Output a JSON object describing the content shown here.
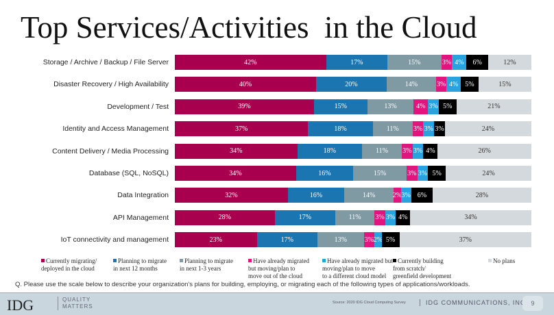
{
  "chart_data": {
    "type": "bar",
    "orientation": "horizontal",
    "stacked": true,
    "title": "Top Services/Activities  in the Cloud",
    "categories": [
      "Storage / Archive / Backup / File Server",
      "Disaster Recovery / High Availability",
      "Development / Test",
      "Identity and Access Management",
      "Content Delivery / Media Processing",
      "Database (SQL, NoSQL)",
      "Data Integration",
      "API Management",
      "IoT connectivity and management"
    ],
    "series": [
      {
        "name": "Currently migrating/ deployed in the cloud",
        "legend": "Currently migrating/\ndeployed in the cloud",
        "color": "#a8004f",
        "text": "#fff",
        "values": [
          42,
          40,
          39,
          37,
          34,
          34,
          32,
          28,
          23
        ]
      },
      {
        "name": "Planning to migrate in next 12 months",
        "legend": "Planning to migrate\nin next 12 months",
        "color": "#1a75b0",
        "text": "#fff",
        "values": [
          17,
          20,
          15,
          18,
          18,
          16,
          16,
          17,
          17
        ]
      },
      {
        "name": "Planning to migrate in next 1-3 years",
        "legend": "Planning to migrate\nin next 1-3 years",
        "color": "#7f9aa3",
        "text": "#fff",
        "values": [
          15,
          14,
          13,
          11,
          11,
          15,
          14,
          11,
          13
        ]
      },
      {
        "name": "Have already migrated but moving/plan to move out of the cloud",
        "legend": "Have already migrated\nbut moving/plan to\nmove out of the cloud",
        "color": "#e2147e",
        "text": "#fff",
        "values": [
          3,
          3,
          4,
          3,
          3,
          3,
          2,
          3,
          3
        ]
      },
      {
        "name": "Have already migrated but moving/plan to move to a different cloud model",
        "legend": "Have already migrated but\nmoving/plan to move\nto a different cloud model",
        "color": "#29a3e0",
        "text": "#fff",
        "values": [
          4,
          4,
          3,
          3,
          3,
          3,
          3,
          3,
          2
        ]
      },
      {
        "name": "Currently building from scratch/ greenfield development",
        "legend": "Currently building\nfrom scratch/\ngreenfield development",
        "color": "#000000",
        "text": "#fff",
        "values": [
          6,
          5,
          5,
          3,
          4,
          5,
          6,
          4,
          5
        ]
      },
      {
        "name": "No plans",
        "legend": "No plans",
        "color": "#d3d9dc",
        "text": "#333",
        "values": [
          12,
          15,
          21,
          24,
          26,
          24,
          28,
          34,
          37
        ]
      }
    ],
    "unit": "%",
    "legend_position": "bottom"
  },
  "question": "Q. Please use the scale below to describe your organization's plans for building, employing, or migrating each of the following types of applications/workloads.",
  "footer": {
    "logo": "IDG",
    "tagline": "QUALITY\nMATTERS",
    "source": "Source: 2020 IDG Cloud Computing Survey",
    "company": "IDG COMMUNICATIONS, INC.",
    "page": "9"
  }
}
